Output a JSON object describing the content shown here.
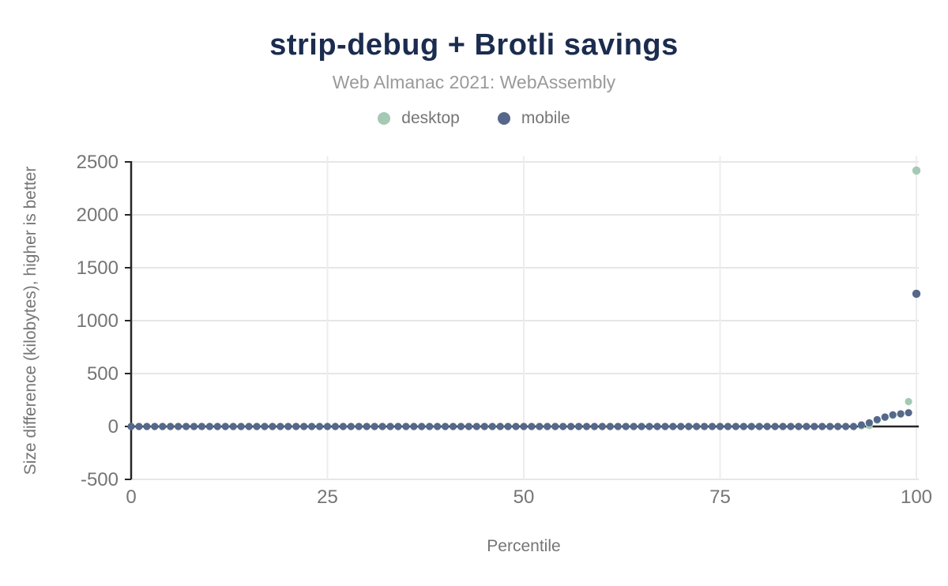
{
  "header": {
    "title": "strip-debug + Brotli savings",
    "subtitle": "Web Almanac 2021: WebAssembly"
  },
  "legend": {
    "items": [
      {
        "label": "desktop",
        "color": "#a4c9b4"
      },
      {
        "label": "mobile",
        "color": "#56688a"
      }
    ]
  },
  "colors": {
    "title": "#1b2c4f",
    "subtitle_text": "#9a9a9a",
    "axis_text": "#757575",
    "gridline": "#e6e6e6",
    "axis_line": "#262626",
    "desktop": "#a4c9b4",
    "mobile": "#56688a",
    "background": "#ffffff"
  },
  "chart_data": {
    "type": "scatter",
    "title": "strip-debug + Brotli savings",
    "subtitle": "Web Almanac 2021: WebAssembly",
    "xlabel": "Percentile",
    "ylabel": "Size difference (kilobytes), higher is better",
    "xlim": [
      0,
      100
    ],
    "ylim": [
      -500,
      2500
    ],
    "xticks": [
      0,
      25,
      50,
      75,
      100
    ],
    "yticks": [
      -500,
      0,
      500,
      1000,
      1500,
      2000,
      2500
    ],
    "grid": true,
    "legend_position": "top",
    "x": [
      0,
      1,
      2,
      3,
      4,
      5,
      6,
      7,
      8,
      9,
      10,
      11,
      12,
      13,
      14,
      15,
      16,
      17,
      18,
      19,
      20,
      21,
      22,
      23,
      24,
      25,
      26,
      27,
      28,
      29,
      30,
      31,
      32,
      33,
      34,
      35,
      36,
      37,
      38,
      39,
      40,
      41,
      42,
      43,
      44,
      45,
      46,
      47,
      48,
      49,
      50,
      51,
      52,
      53,
      54,
      55,
      56,
      57,
      58,
      59,
      60,
      61,
      62,
      63,
      64,
      65,
      66,
      67,
      68,
      69,
      70,
      71,
      72,
      73,
      74,
      75,
      76,
      77,
      78,
      79,
      80,
      81,
      82,
      83,
      84,
      85,
      86,
      87,
      88,
      89,
      90,
      91,
      92,
      93,
      94,
      95,
      96,
      97,
      98,
      99,
      100
    ],
    "series": [
      {
        "name": "desktop",
        "color": "#a4c9b4",
        "values": [
          0,
          0,
          0,
          0,
          0,
          0,
          0,
          0,
          0,
          0,
          0,
          0,
          0,
          0,
          0,
          0,
          0,
          0,
          0,
          0,
          0,
          0,
          0,
          0,
          0,
          0,
          0,
          0,
          0,
          0,
          0,
          0,
          0,
          0,
          0,
          0,
          0,
          0,
          0,
          0,
          0,
          0,
          0,
          0,
          0,
          0,
          0,
          0,
          0,
          0,
          0,
          0,
          0,
          0,
          0,
          0,
          0,
          0,
          0,
          0,
          0,
          0,
          0,
          0,
          0,
          0,
          0,
          0,
          0,
          0,
          0,
          0,
          0,
          0,
          0,
          0,
          0,
          0,
          0,
          0,
          0,
          0,
          0,
          0,
          0,
          0,
          0,
          0,
          0,
          0,
          0,
          0,
          0,
          5,
          8,
          60,
          85,
          105,
          115,
          235,
          2418
        ]
      },
      {
        "name": "mobile",
        "color": "#56688a",
        "values": [
          0,
          0,
          0,
          0,
          0,
          0,
          0,
          0,
          0,
          0,
          0,
          0,
          0,
          0,
          0,
          0,
          0,
          0,
          0,
          0,
          0,
          0,
          0,
          0,
          0,
          0,
          0,
          0,
          0,
          0,
          0,
          0,
          0,
          0,
          0,
          0,
          0,
          0,
          0,
          0,
          0,
          0,
          0,
          0,
          0,
          0,
          0,
          0,
          0,
          0,
          0,
          0,
          0,
          0,
          0,
          0,
          0,
          0,
          0,
          0,
          0,
          0,
          0,
          0,
          0,
          0,
          0,
          0,
          0,
          0,
          0,
          0,
          0,
          0,
          0,
          0,
          0,
          0,
          0,
          0,
          0,
          0,
          0,
          0,
          0,
          0,
          0,
          0,
          0,
          0,
          0,
          0,
          0,
          15,
          35,
          65,
          90,
          110,
          120,
          130,
          1254
        ]
      }
    ]
  }
}
